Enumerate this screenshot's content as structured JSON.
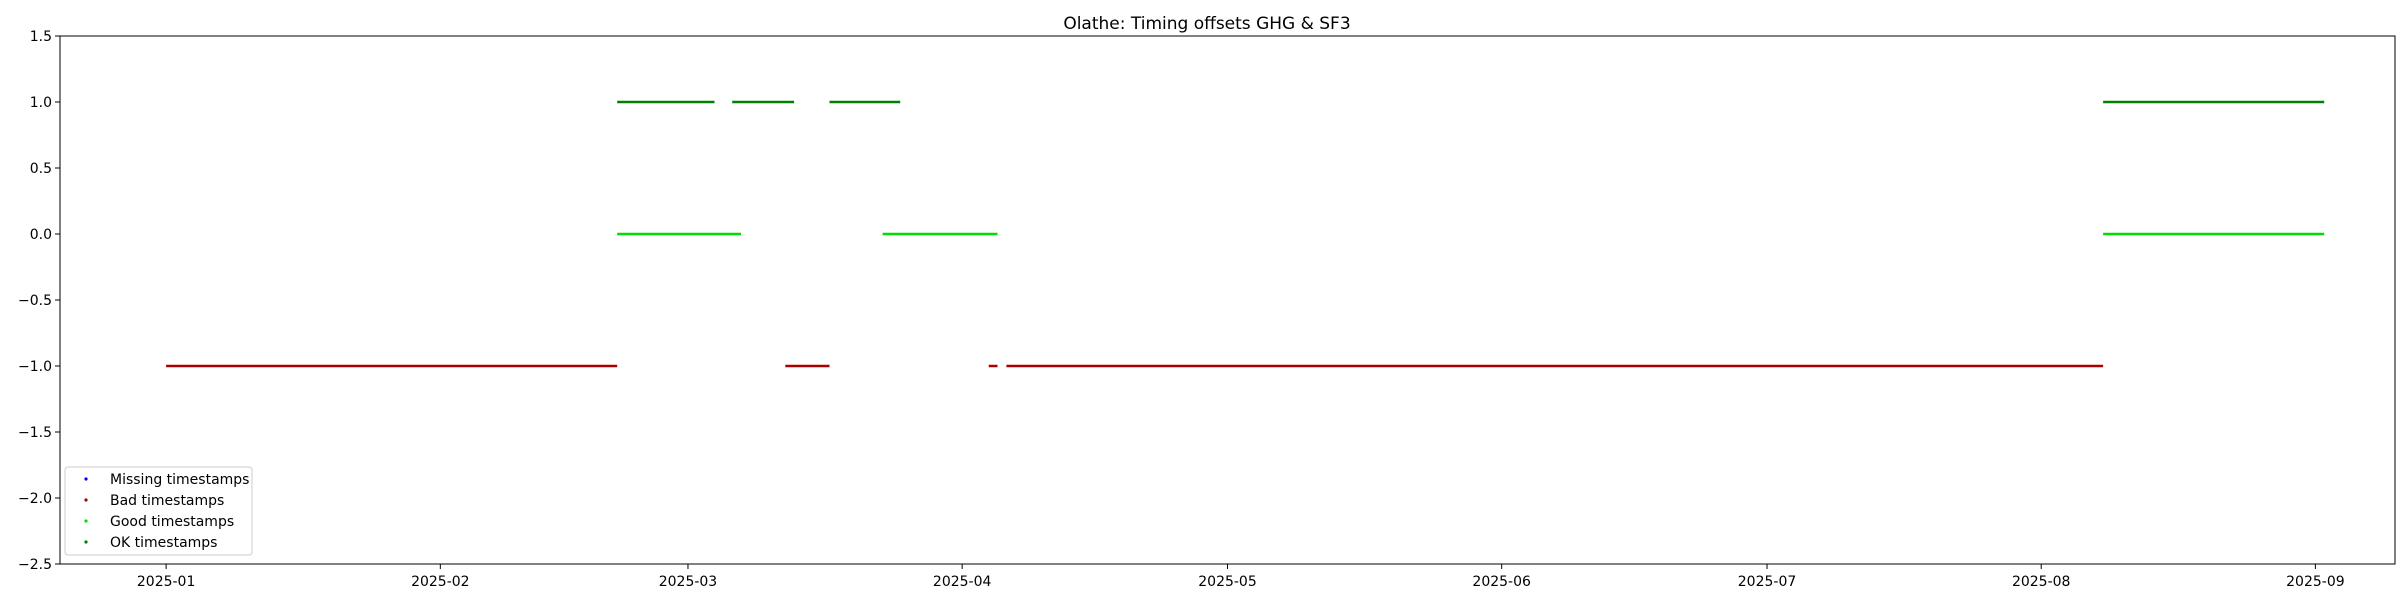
{
  "chart_data": {
    "type": "scatter",
    "title": "Olathe: Timing offsets GHG & SF3",
    "xlabel": "",
    "ylabel": "",
    "xlim": [
      "2024-12-20",
      "2025-09-10"
    ],
    "ylim": [
      -2.5,
      1.5
    ],
    "x_ticks": [
      "2025-01",
      "2025-02",
      "2025-03",
      "2025-04",
      "2025-05",
      "2025-06",
      "2025-07",
      "2025-08",
      "2025-09"
    ],
    "y_ticks": [
      1.5,
      1.0,
      0.5,
      0.0,
      -0.5,
      -1.0,
      -1.5,
      -2.0,
      -2.5
    ],
    "y_tick_labels": [
      "1.5",
      "1.0",
      "0.5",
      "0.0",
      "−0.5",
      "−1.0",
      "−1.5",
      "−2.0",
      "−2.5"
    ],
    "grid": false,
    "legend_position": "lower-left",
    "series": [
      {
        "name": "Missing timestamps",
        "color": "#0000ff",
        "y": null,
        "segments": []
      },
      {
        "name": "Bad timestamps",
        "color": "#aa0000",
        "y": -1.0,
        "segments": [
          [
            "2025-01-01",
            "2025-02-21"
          ],
          [
            "2025-03-12",
            "2025-03-17"
          ],
          [
            "2025-04-04",
            "2025-04-05"
          ],
          [
            "2025-04-06",
            "2025-08-08"
          ]
        ]
      },
      {
        "name": "Good timestamps",
        "color": "#00dd00",
        "y": 0.0,
        "segments": [
          [
            "2025-02-21",
            "2025-03-07"
          ],
          [
            "2025-03-23",
            "2025-04-05"
          ],
          [
            "2025-08-08",
            "2025-08-09"
          ],
          [
            "2025-08-09",
            "2025-09-02"
          ]
        ]
      },
      {
        "name": "OK timestamps",
        "color": "#008000",
        "y": 1.0,
        "segments": [
          [
            "2025-02-21",
            "2025-03-04"
          ],
          [
            "2025-03-06",
            "2025-03-13"
          ],
          [
            "2025-03-17",
            "2025-03-25"
          ],
          [
            "2025-08-08",
            "2025-08-09"
          ],
          [
            "2025-08-09",
            "2025-09-02"
          ]
        ]
      }
    ]
  }
}
